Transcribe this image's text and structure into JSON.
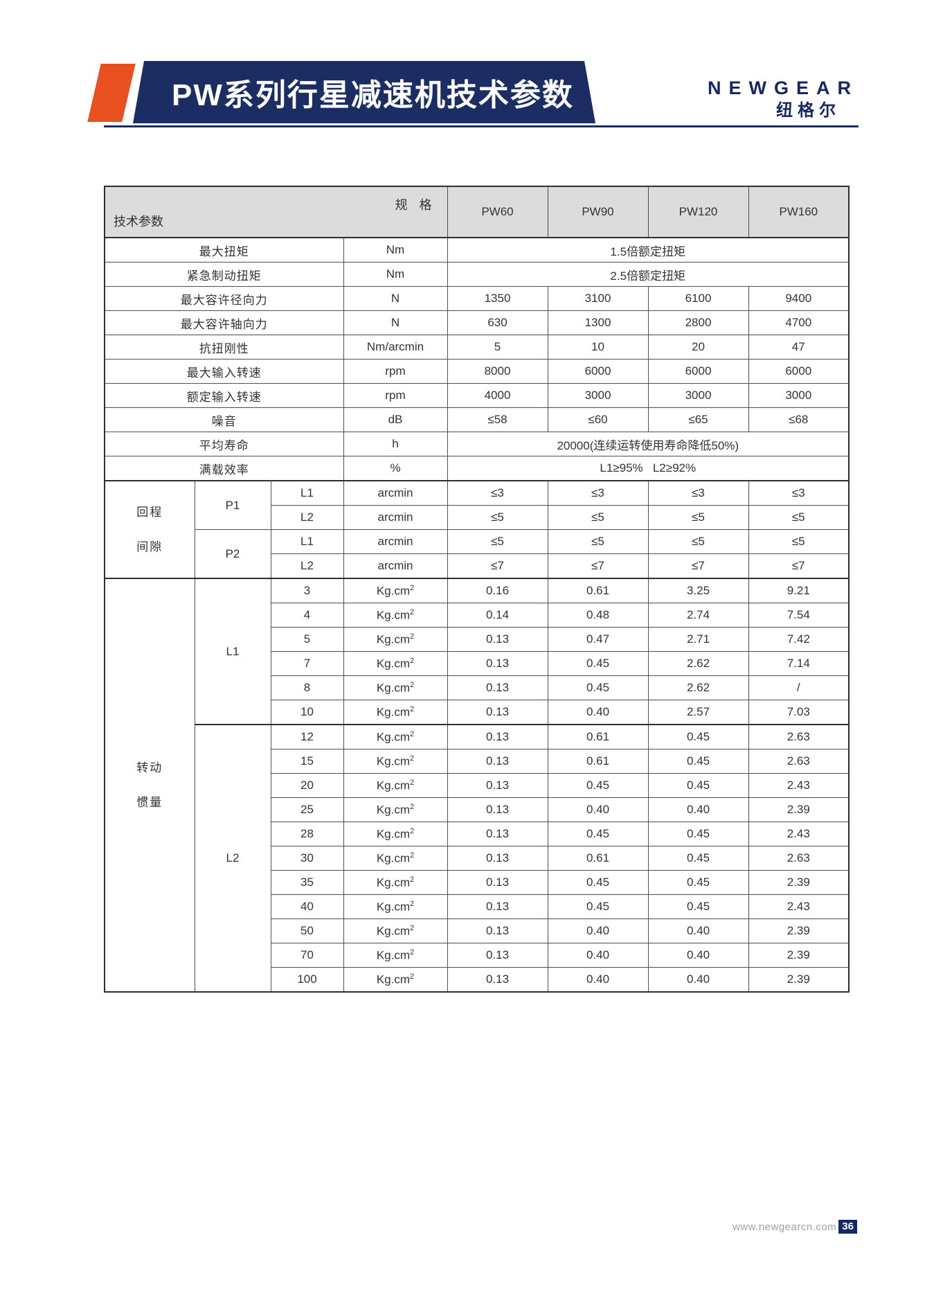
{
  "header": {
    "title": "PW系列行星减速机技术参数",
    "logo_text": "NEWGEAR",
    "logo_subtext": "纽格尔"
  },
  "table": {
    "corner": {
      "top_right": "规 格",
      "bottom_left": "技术参数"
    },
    "models": [
      "PW60",
      "PW90",
      "PW120",
      "PW160"
    ],
    "simple_rows": [
      {
        "label": "最大扭矩",
        "unit": "Nm",
        "span": "1.5倍额定扭矩"
      },
      {
        "label": "紧急制动扭矩",
        "unit": "Nm",
        "span": "2.5倍额定扭矩"
      },
      {
        "label": "最大容许径向力",
        "unit": "N",
        "values": [
          "1350",
          "3100",
          "6100",
          "9400"
        ]
      },
      {
        "label": "最大容许轴向力",
        "unit": "N",
        "values": [
          "630",
          "1300",
          "2800",
          "4700"
        ]
      },
      {
        "label": "抗扭刚性",
        "unit": "Nm/arcmin",
        "values": [
          "5",
          "10",
          "20",
          "47"
        ]
      },
      {
        "label": "最大输入转速",
        "unit": "rpm",
        "values": [
          "8000",
          "6000",
          "6000",
          "6000"
        ]
      },
      {
        "label": "额定输入转速",
        "unit": "rpm",
        "values": [
          "4000",
          "3000",
          "3000",
          "3000"
        ]
      },
      {
        "label": "噪音",
        "unit": "dB",
        "values": [
          "≤58",
          "≤60",
          "≤65",
          "≤68"
        ]
      },
      {
        "label": "平均寿命",
        "unit": "h",
        "span": "20000(连续运转使用寿命降低50%)"
      },
      {
        "label": "满载效率",
        "unit": "%",
        "span": "L1≥95%   L2≥92%"
      }
    ],
    "backlash": {
      "label_lines": [
        "回程",
        "间隙"
      ],
      "groups": [
        {
          "name": "P1",
          "rows": [
            {
              "stage": "L1",
              "unit": "arcmin",
              "values": [
                "≤3",
                "≤3",
                "≤3",
                "≤3"
              ]
            },
            {
              "stage": "L2",
              "unit": "arcmin",
              "values": [
                "≤5",
                "≤5",
                "≤5",
                "≤5"
              ]
            }
          ]
        },
        {
          "name": "P2",
          "rows": [
            {
              "stage": "L1",
              "unit": "arcmin",
              "values": [
                "≤5",
                "≤5",
                "≤5",
                "≤5"
              ]
            },
            {
              "stage": "L2",
              "unit": "arcmin",
              "values": [
                "≤7",
                "≤7",
                "≤7",
                "≤7"
              ]
            }
          ]
        }
      ]
    },
    "inertia": {
      "label_lines": [
        "转动",
        "惯量"
      ],
      "unit": {
        "base": "Kg.cm",
        "sup": "2"
      },
      "groups": [
        {
          "name": "L1",
          "rows": [
            {
              "ratio": "3",
              "values": [
                "0.16",
                "0.61",
                "3.25",
                "9.21"
              ]
            },
            {
              "ratio": "4",
              "values": [
                "0.14",
                "0.48",
                "2.74",
                "7.54"
              ]
            },
            {
              "ratio": "5",
              "values": [
                "0.13",
                "0.47",
                "2.71",
                "7.42"
              ]
            },
            {
              "ratio": "7",
              "values": [
                "0.13",
                "0.45",
                "2.62",
                "7.14"
              ]
            },
            {
              "ratio": "8",
              "values": [
                "0.13",
                "0.45",
                "2.62",
                "/"
              ]
            },
            {
              "ratio": "10",
              "values": [
                "0.13",
                "0.40",
                "2.57",
                "7.03"
              ]
            }
          ]
        },
        {
          "name": "L2",
          "rows": [
            {
              "ratio": "12",
              "values": [
                "0.13",
                "0.61",
                "0.45",
                "2.63"
              ]
            },
            {
              "ratio": "15",
              "values": [
                "0.13",
                "0.61",
                "0.45",
                "2.63"
              ]
            },
            {
              "ratio": "20",
              "values": [
                "0.13",
                "0.45",
                "0.45",
                "2.43"
              ]
            },
            {
              "ratio": "25",
              "values": [
                "0.13",
                "0.40",
                "0.40",
                "2.39"
              ]
            },
            {
              "ratio": "28",
              "values": [
                "0.13",
                "0.45",
                "0.45",
                "2.43"
              ]
            },
            {
              "ratio": "30",
              "values": [
                "0.13",
                "0.61",
                "0.45",
                "2.63"
              ]
            },
            {
              "ratio": "35",
              "values": [
                "0.13",
                "0.45",
                "0.45",
                "2.39"
              ]
            },
            {
              "ratio": "40",
              "values": [
                "0.13",
                "0.45",
                "0.45",
                "2.43"
              ]
            },
            {
              "ratio": "50",
              "values": [
                "0.13",
                "0.40",
                "0.40",
                "2.39"
              ]
            },
            {
              "ratio": "70",
              "values": [
                "0.13",
                "0.40",
                "0.40",
                "2.39"
              ]
            },
            {
              "ratio": "100",
              "values": [
                "0.13",
                "0.40",
                "0.40",
                "2.39"
              ]
            }
          ]
        }
      ]
    }
  },
  "footer": {
    "url": "www.newgearcn.com",
    "page": "36"
  },
  "colors": {
    "navy": "#1b2d63",
    "orange": "#e8511f",
    "stripe": "#ececec",
    "header_gray": "#dcdcdc"
  }
}
